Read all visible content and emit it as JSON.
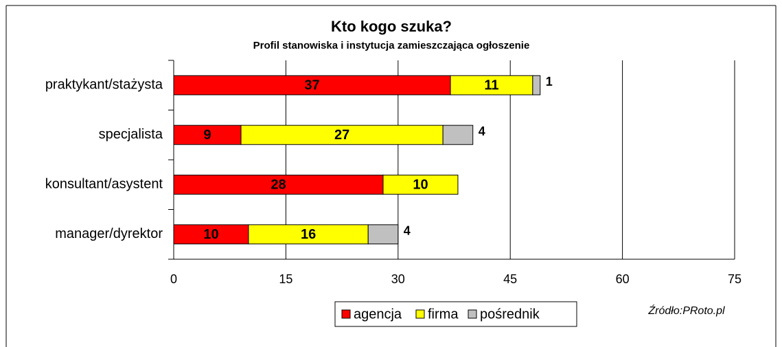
{
  "chart_data": {
    "type": "stacked-barh",
    "title": "Kto kogo szuka?",
    "subtitle": "Profil stanowiska i instytucja zamieszczająca ogłoszenie",
    "categories": [
      "praktykant/stażysta",
      "specjalista",
      "konsultant/asystent",
      "manager/dyrektor"
    ],
    "series": [
      {
        "name": "agencja",
        "color": "#ff0000",
        "values": [
          37,
          9,
          28,
          10
        ]
      },
      {
        "name": "firma",
        "color": "#ffff00",
        "values": [
          11,
          27,
          10,
          16
        ]
      },
      {
        "name": "pośrednik",
        "color": "#c0c0c0",
        "values": [
          1,
          4,
          null,
          4
        ]
      }
    ],
    "xlim": [
      0,
      75
    ],
    "xticks": [
      0,
      15,
      30,
      45,
      60,
      75
    ],
    "grid": true,
    "legend": "bottom",
    "source": "Źródło:PRoto.pl"
  }
}
